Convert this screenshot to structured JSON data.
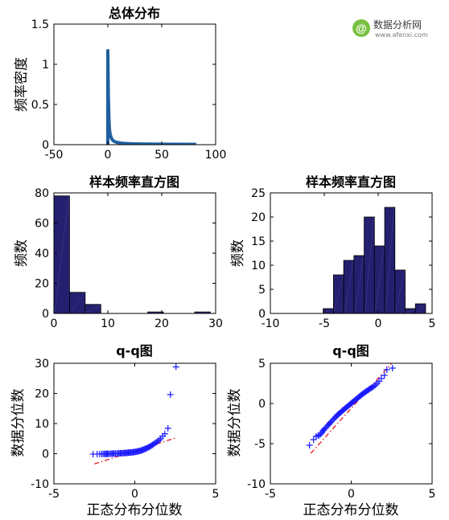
{
  "watermark": {
    "brand": "数据分析网",
    "url": "www.afenxi.com",
    "accent": "#79c142"
  },
  "chart_data": [
    {
      "id": "population",
      "type": "line",
      "title": "总体分布",
      "ylabel": "频率密度",
      "xlabel": "",
      "xlim": [
        -50,
        100
      ],
      "ylim": [
        0,
        1.5
      ],
      "xticks": [
        -50,
        0,
        50,
        100
      ],
      "yticks": [
        0,
        0.5,
        1,
        1.5
      ],
      "grid": false,
      "color": "#1f5f9f",
      "x": [
        0,
        0.5,
        1,
        1.5,
        2,
        3,
        4,
        5,
        6,
        8,
        10,
        12,
        15,
        20,
        25,
        30,
        40,
        50,
        60,
        70,
        82
      ],
      "y": [
        1.17,
        0.62,
        0.33,
        0.2,
        0.14,
        0.09,
        0.065,
        0.05,
        0.04,
        0.03,
        0.025,
        0.02,
        0.016,
        0.012,
        0.01,
        0.009,
        0.007,
        0.006,
        0.005,
        0.005,
        0.004
      ]
    },
    {
      "id": "hist-original",
      "type": "bar",
      "title": "样本频率直方图",
      "ylabel": "频数",
      "xlabel": "",
      "xlim": [
        0,
        30
      ],
      "ylim": [
        0,
        80
      ],
      "xticks": [
        0,
        10,
        20,
        30
      ],
      "yticks": [
        0,
        20,
        40,
        60,
        80
      ],
      "grid": false,
      "color": "#24206f",
      "bin_edges": [
        0,
        2.9,
        5.8,
        8.7,
        11.6,
        14.5,
        17.4,
        20.3,
        23.2,
        26.1,
        29
      ],
      "values": [
        78,
        14,
        6,
        0,
        0,
        0,
        1,
        0,
        0,
        1
      ]
    },
    {
      "id": "hist-transformed",
      "type": "bar",
      "title": "样本频率直方图",
      "ylabel": "频数",
      "xlabel": "",
      "xlim": [
        -10,
        5
      ],
      "ylim": [
        0,
        25
      ],
      "xticks": [
        -10,
        -5,
        0,
        5
      ],
      "yticks": [
        0,
        5,
        10,
        15,
        20,
        25
      ],
      "grid": false,
      "color": "#24206f",
      "bin_edges": [
        -5.1,
        -4.15,
        -3.2,
        -2.25,
        -1.3,
        -0.35,
        0.6,
        1.55,
        2.5,
        3.45,
        4.4
      ],
      "values": [
        1,
        8,
        11,
        12,
        20,
        14,
        22,
        9,
        1,
        2
      ]
    },
    {
      "id": "qq-original",
      "type": "scatter",
      "title": "q-q图",
      "ylabel": "数据分位数",
      "xlabel": "正态分布分位数",
      "xlim": [
        -5,
        5
      ],
      "ylim": [
        -10,
        30
      ],
      "xticks": [
        -5,
        0,
        5
      ],
      "yticks": [
        -10,
        0,
        10,
        20,
        30
      ],
      "grid": false,
      "marker_color": "#1a1aff",
      "ref_line_color": "#e8262b",
      "ref_line": {
        "x": [
          -2.5,
          2.5
        ],
        "y": [
          -3.4,
          5.2
        ]
      },
      "x": [
        -2.58,
        -2.33,
        -2.17,
        -2.05,
        -1.96,
        -1.88,
        -1.81,
        -1.75,
        -1.7,
        -1.64,
        -1.56,
        -1.48,
        -1.41,
        -1.34,
        -1.28,
        -1.2,
        -1.12,
        -1.04,
        -0.97,
        -0.9,
        -0.84,
        -0.77,
        -0.71,
        -0.64,
        -0.58,
        -0.52,
        -0.46,
        -0.4,
        -0.34,
        -0.28,
        -0.22,
        -0.16,
        -0.1,
        -0.04,
        0.02,
        0.08,
        0.14,
        0.2,
        0.26,
        0.32,
        0.38,
        0.44,
        0.5,
        0.56,
        0.62,
        0.68,
        0.75,
        0.82,
        0.89,
        0.96,
        1.03,
        1.1,
        1.17,
        1.25,
        1.33,
        1.41,
        1.5,
        1.6,
        1.72,
        1.86,
        2.05,
        2.2,
        2.55
      ],
      "y": [
        -0.15,
        -0.12,
        -0.1,
        -0.09,
        -0.08,
        -0.07,
        -0.06,
        -0.05,
        -0.04,
        -0.03,
        -0.02,
        0,
        0.02,
        0.03,
        0.05,
        0.06,
        0.08,
        0.1,
        0.12,
        0.14,
        0.16,
        0.18,
        0.2,
        0.22,
        0.25,
        0.28,
        0.3,
        0.33,
        0.36,
        0.4,
        0.43,
        0.47,
        0.5,
        0.55,
        0.6,
        0.65,
        0.72,
        0.8,
        0.88,
        0.96,
        1.05,
        1.15,
        1.27,
        1.4,
        1.55,
        1.7,
        1.85,
        2.05,
        2.25,
        2.45,
        2.7,
        2.95,
        3.2,
        3.5,
        3.8,
        4.1,
        4.5,
        5.0,
        5.8,
        6.6,
        8.4,
        19.6,
        28.8
      ]
    },
    {
      "id": "qq-transformed",
      "type": "scatter",
      "title": "q-q图",
      "ylabel": "数据分位数",
      "xlabel": "正态分布分位数",
      "xlim": [
        -5,
        5
      ],
      "ylim": [
        -10,
        5
      ],
      "xticks": [
        -5,
        0,
        5
      ],
      "yticks": [
        -10,
        -5,
        0,
        5
      ],
      "grid": false,
      "marker_color": "#1a1aff",
      "ref_line_color": "#e8262b",
      "ref_line": {
        "x": [
          -2.5,
          2.5
        ],
        "y": [
          -6.2,
          5.0
        ]
      },
      "x": [
        -2.58,
        -2.33,
        -2.17,
        -2.05,
        -1.96,
        -1.88,
        -1.81,
        -1.75,
        -1.7,
        -1.64,
        -1.56,
        -1.48,
        -1.41,
        -1.34,
        -1.28,
        -1.2,
        -1.12,
        -1.04,
        -0.97,
        -0.9,
        -0.84,
        -0.77,
        -0.71,
        -0.64,
        -0.58,
        -0.52,
        -0.46,
        -0.4,
        -0.34,
        -0.28,
        -0.22,
        -0.16,
        -0.1,
        -0.04,
        0.02,
        0.08,
        0.14,
        0.2,
        0.26,
        0.32,
        0.38,
        0.44,
        0.5,
        0.56,
        0.62,
        0.68,
        0.75,
        0.82,
        0.89,
        0.96,
        1.03,
        1.1,
        1.17,
        1.25,
        1.33,
        1.41,
        1.5,
        1.6,
        1.72,
        1.86,
        2.05,
        2.2,
        2.55
      ],
      "y": [
        -5.2,
        -4.5,
        -4.1,
        -4.0,
        -3.95,
        -3.8,
        -3.6,
        -3.4,
        -3.3,
        -3.15,
        -3.0,
        -2.8,
        -2.65,
        -2.5,
        -2.35,
        -2.2,
        -2.0,
        -1.85,
        -1.7,
        -1.55,
        -1.4,
        -1.3,
        -1.2,
        -1.1,
        -0.95,
        -0.85,
        -0.75,
        -0.65,
        -0.55,
        -0.45,
        -0.35,
        -0.25,
        -0.15,
        -0.05,
        0.05,
        0.15,
        0.25,
        0.35,
        0.45,
        0.55,
        0.65,
        0.75,
        0.85,
        0.95,
        1.05,
        1.15,
        1.25,
        1.35,
        1.45,
        1.55,
        1.65,
        1.75,
        1.85,
        1.95,
        2.05,
        2.15,
        2.3,
        2.5,
        2.75,
        3.1,
        3.5,
        4.2,
        4.4
      ]
    }
  ]
}
